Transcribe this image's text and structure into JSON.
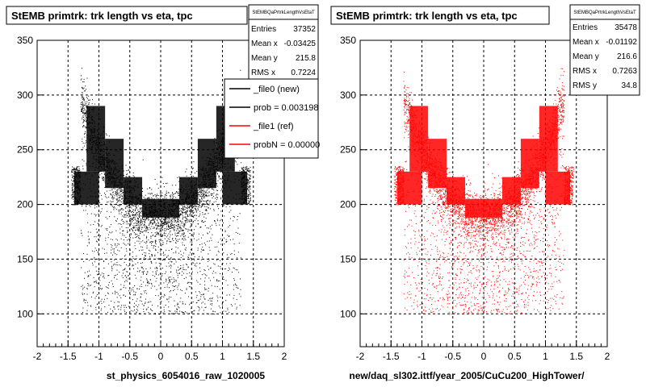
{
  "chart_data": [
    {
      "type": "scatter",
      "title": "StEMB primtrk: trk length vs eta, tpc",
      "xlabel": "st_physics_6054016_raw_1020005",
      "ylabel": "",
      "xlim": [
        -2,
        2
      ],
      "ylim": [
        70,
        350
      ],
      "x_ticks": [
        "-2",
        "-1.5",
        "-1",
        "-0.5",
        "0",
        "0.5",
        "1",
        "1.5",
        "2"
      ],
      "y_ticks": [
        "100",
        "150",
        "200",
        "250",
        "300",
        "350"
      ],
      "grid": true,
      "point_color": "#000000",
      "stats": {
        "header": "StEMBQaPrtrkLengthVsEtaT",
        "rows": [
          {
            "label": "Entries",
            "value": "37352"
          },
          {
            "label": "Mean x",
            "value": "-0.03425"
          },
          {
            "label": "Mean y",
            "value": "215.8"
          },
          {
            "label": "RMS x",
            "value": "0.7224"
          }
        ]
      },
      "legend": {
        "placement": "top-right",
        "entries": [
          {
            "label": "_file0 (new)",
            "color": "#000000"
          },
          {
            "label": "prob = 0.003198",
            "color": "#000000"
          },
          {
            "label": "_file1 (ref)",
            "color": "#ff0000"
          },
          {
            "label": "probN = 0.00000",
            "color": "#ff0000"
          }
        ]
      },
      "bins": [
        {
          "x": [
            -1.4,
            -1.0
          ],
          "y": [
            200,
            230
          ]
        },
        {
          "x": [
            -1.2,
            -0.9
          ],
          "y": [
            230,
            290
          ]
        },
        {
          "x": [
            -0.9,
            -0.6
          ],
          "y": [
            215,
            260
          ]
        },
        {
          "x": [
            -0.6,
            -0.3
          ],
          "y": [
            200,
            225
          ]
        },
        {
          "x": [
            -0.3,
            0.3
          ],
          "y": [
            188,
            205
          ]
        },
        {
          "x": [
            0.3,
            0.6
          ],
          "y": [
            200,
            225
          ]
        },
        {
          "x": [
            0.6,
            0.9
          ],
          "y": [
            215,
            260
          ]
        },
        {
          "x": [
            0.9,
            1.2
          ],
          "y": [
            230,
            290
          ]
        },
        {
          "x": [
            1.0,
            1.4
          ],
          "y": [
            200,
            230
          ]
        }
      ]
    },
    {
      "type": "scatter",
      "title": "StEMB primtrk: trk length vs eta, tpc",
      "xlabel": "new/daq_sl302.ittf/year_2005/CuCu200_HighTower/",
      "ylabel": "",
      "xlim": [
        -2,
        2
      ],
      "ylim": [
        70,
        350
      ],
      "x_ticks": [
        "-2",
        "-1.5",
        "-1",
        "-0.5",
        "0",
        "0.5",
        "1",
        "1.5",
        "2"
      ],
      "y_ticks": [
        "100",
        "150",
        "200",
        "250",
        "300",
        "350"
      ],
      "grid": true,
      "point_color": "#ff0000",
      "stats": {
        "header": "StEMBQaPrtrkLengthVsEtaT",
        "rows": [
          {
            "label": "Entries",
            "value": "35478"
          },
          {
            "label": "Mean x",
            "value": "-0.01192"
          },
          {
            "label": "Mean y",
            "value": "216.6"
          },
          {
            "label": "RMS x",
            "value": "0.7263"
          },
          {
            "label": "RMS y",
            "value": "34.8"
          }
        ]
      },
      "bins": [
        {
          "x": [
            -1.4,
            -1.0
          ],
          "y": [
            200,
            230
          ]
        },
        {
          "x": [
            -1.2,
            -0.9
          ],
          "y": [
            230,
            290
          ]
        },
        {
          "x": [
            -0.9,
            -0.6
          ],
          "y": [
            215,
            260
          ]
        },
        {
          "x": [
            -0.6,
            -0.3
          ],
          "y": [
            200,
            225
          ]
        },
        {
          "x": [
            -0.3,
            0.3
          ],
          "y": [
            188,
            205
          ]
        },
        {
          "x": [
            0.3,
            0.6
          ],
          "y": [
            200,
            225
          ]
        },
        {
          "x": [
            0.6,
            0.9
          ],
          "y": [
            215,
            260
          ]
        },
        {
          "x": [
            0.9,
            1.2
          ],
          "y": [
            230,
            290
          ]
        },
        {
          "x": [
            1.0,
            1.4
          ],
          "y": [
            200,
            230
          ]
        }
      ]
    }
  ]
}
